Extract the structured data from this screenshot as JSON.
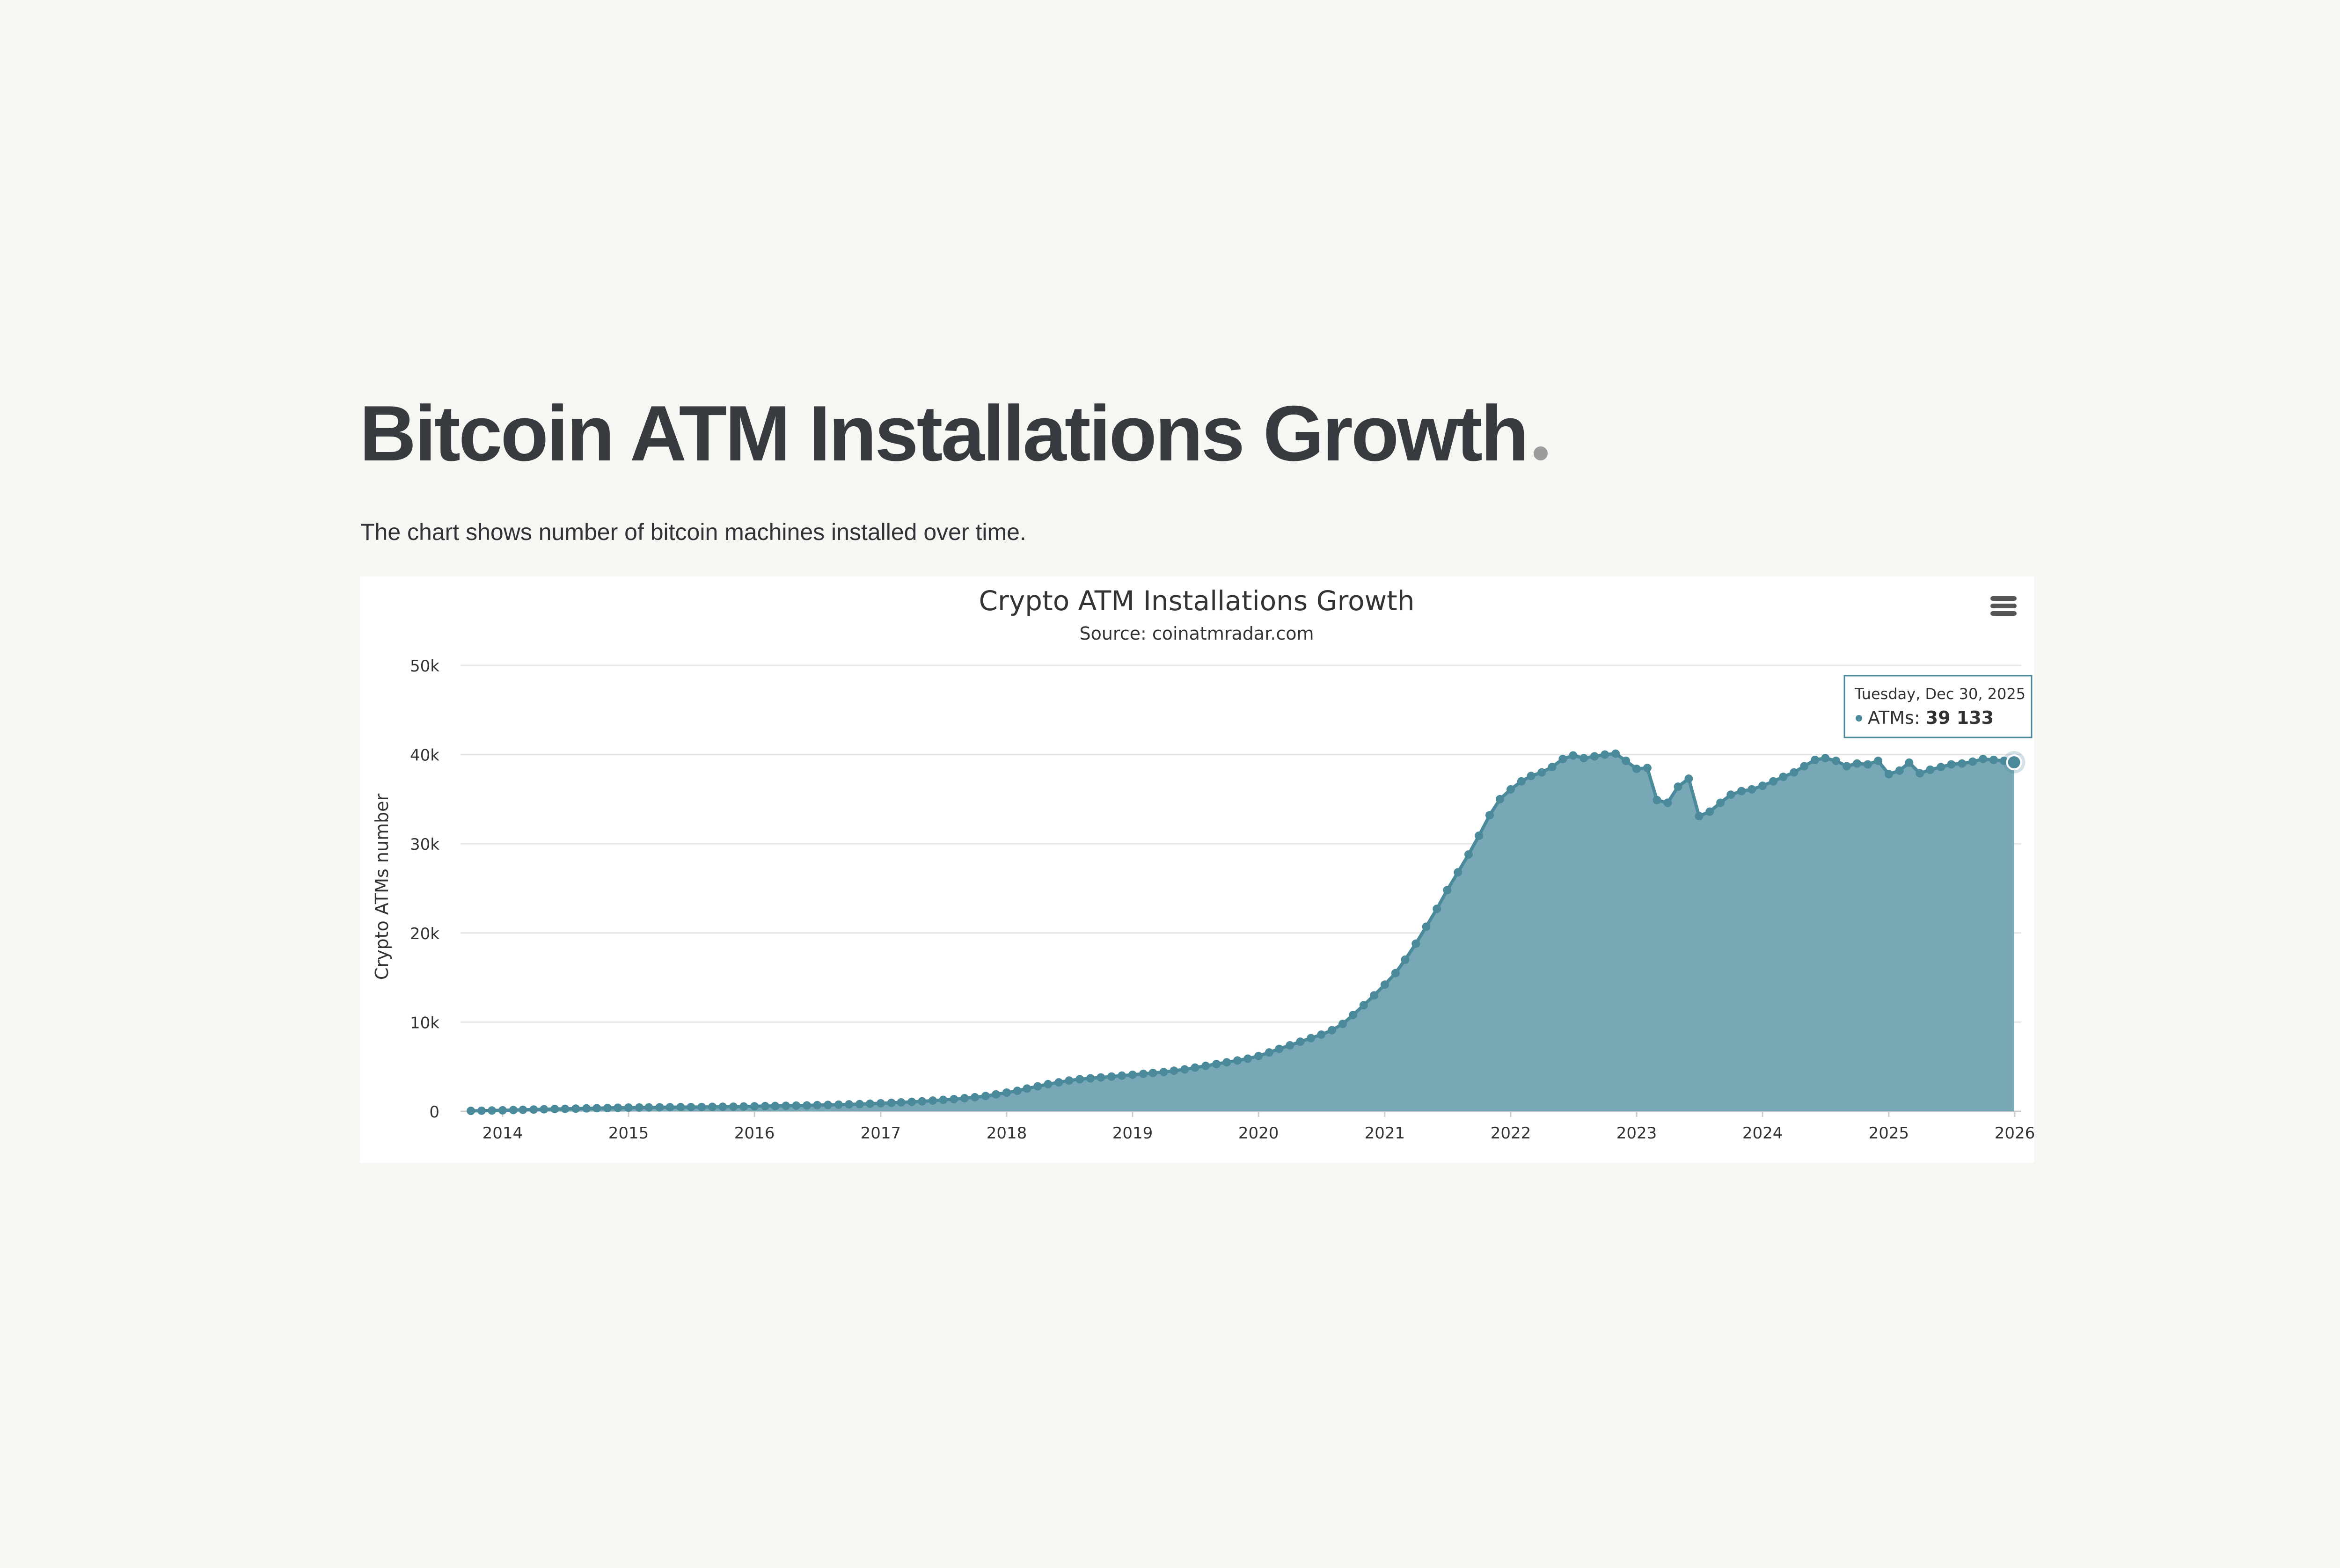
{
  "page": {
    "title": "Bitcoin ATM Installations Growth",
    "description": "The chart shows number of bitcoin machines installed over time."
  },
  "chart_menu": {
    "icon": "hamburger-menu-icon"
  },
  "tooltip": {
    "date": "Tuesday, Dec 30, 2025",
    "series_label": "ATMs:",
    "value": "39 133"
  },
  "colors": {
    "series": "#4b8a9b",
    "area_fill": "#78a8b6",
    "grid": "#e6e6e6",
    "text": "#333333",
    "page_background": "#f6f6f2"
  },
  "chart_data": {
    "type": "area",
    "title": "Crypto ATM Installations Growth",
    "subtitle": "Source: coinatmradar.com",
    "ylabel": "Crypto ATMs number",
    "xlabel": "",
    "ylim": [
      0,
      50000
    ],
    "xlim": [
      "2013-09-01",
      "2026-01-20"
    ],
    "y_ticks": [
      0,
      10000,
      20000,
      30000,
      40000,
      50000
    ],
    "y_tick_labels": [
      "0",
      "10k",
      "20k",
      "30k",
      "40k",
      "50k"
    ],
    "x_ticks": [
      "2014-01-01",
      "2015-01-01",
      "2016-01-01",
      "2017-01-01",
      "2018-01-01",
      "2019-01-01",
      "2020-01-01",
      "2021-01-01",
      "2022-01-01",
      "2023-01-01",
      "2024-01-01",
      "2025-01-01",
      "2026-01-01"
    ],
    "x_tick_labels": [
      "2014",
      "2015",
      "2016",
      "2017",
      "2018",
      "2019",
      "2020",
      "2021",
      "2022",
      "2023",
      "2024",
      "2025",
      "2026"
    ],
    "grid": true,
    "legend": "none",
    "series": [
      {
        "name": "ATMs",
        "points": [
          [
            "2013-10-01",
            50
          ],
          [
            "2013-11-01",
            70
          ],
          [
            "2013-12-01",
            90
          ],
          [
            "2014-01-01",
            110
          ],
          [
            "2014-02-01",
            140
          ],
          [
            "2014-03-01",
            170
          ],
          [
            "2014-04-01",
            200
          ],
          [
            "2014-05-01",
            230
          ],
          [
            "2014-06-01",
            260
          ],
          [
            "2014-07-01",
            280
          ],
          [
            "2014-08-01",
            300
          ],
          [
            "2014-09-01",
            330
          ],
          [
            "2014-10-01",
            350
          ],
          [
            "2014-11-01",
            370
          ],
          [
            "2014-12-01",
            400
          ],
          [
            "2015-01-01",
            420
          ],
          [
            "2015-02-01",
            430
          ],
          [
            "2015-03-01",
            440
          ],
          [
            "2015-04-01",
            450
          ],
          [
            "2015-05-01",
            460
          ],
          [
            "2015-06-01",
            470
          ],
          [
            "2015-07-01",
            480
          ],
          [
            "2015-08-01",
            490
          ],
          [
            "2015-09-01",
            500
          ],
          [
            "2015-10-01",
            510
          ],
          [
            "2015-11-01",
            520
          ],
          [
            "2015-12-01",
            540
          ],
          [
            "2016-01-01",
            560
          ],
          [
            "2016-02-01",
            580
          ],
          [
            "2016-03-01",
            600
          ],
          [
            "2016-04-01",
            620
          ],
          [
            "2016-05-01",
            640
          ],
          [
            "2016-06-01",
            660
          ],
          [
            "2016-07-01",
            690
          ],
          [
            "2016-08-01",
            720
          ],
          [
            "2016-09-01",
            750
          ],
          [
            "2016-10-01",
            780
          ],
          [
            "2016-11-01",
            810
          ],
          [
            "2016-12-01",
            850
          ],
          [
            "2017-01-01",
            900
          ],
          [
            "2017-02-01",
            950
          ],
          [
            "2017-03-01",
            1000
          ],
          [
            "2017-04-01",
            1060
          ],
          [
            "2017-05-01",
            1120
          ],
          [
            "2017-06-01",
            1200
          ],
          [
            "2017-07-01",
            1280
          ],
          [
            "2017-08-01",
            1370
          ],
          [
            "2017-09-01",
            1470
          ],
          [
            "2017-10-01",
            1580
          ],
          [
            "2017-11-01",
            1720
          ],
          [
            "2017-12-01",
            1900
          ],
          [
            "2018-01-01",
            2100
          ],
          [
            "2018-02-01",
            2300
          ],
          [
            "2018-03-01",
            2550
          ],
          [
            "2018-04-01",
            2800
          ],
          [
            "2018-05-01",
            3050
          ],
          [
            "2018-06-01",
            3250
          ],
          [
            "2018-07-01",
            3450
          ],
          [
            "2018-08-01",
            3600
          ],
          [
            "2018-09-01",
            3700
          ],
          [
            "2018-10-01",
            3800
          ],
          [
            "2018-11-01",
            3900
          ],
          [
            "2018-12-01",
            4000
          ],
          [
            "2019-01-01",
            4100
          ],
          [
            "2019-02-01",
            4200
          ],
          [
            "2019-03-01",
            4300
          ],
          [
            "2019-04-01",
            4400
          ],
          [
            "2019-05-01",
            4550
          ],
          [
            "2019-06-01",
            4700
          ],
          [
            "2019-07-01",
            4900
          ],
          [
            "2019-08-01",
            5100
          ],
          [
            "2019-09-01",
            5300
          ],
          [
            "2019-10-01",
            5500
          ],
          [
            "2019-11-01",
            5700
          ],
          [
            "2019-12-01",
            5900
          ],
          [
            "2020-01-01",
            6200
          ],
          [
            "2020-02-01",
            6600
          ],
          [
            "2020-03-01",
            7000
          ],
          [
            "2020-04-01",
            7400
          ],
          [
            "2020-05-01",
            7800
          ],
          [
            "2020-06-01",
            8200
          ],
          [
            "2020-07-01",
            8600
          ],
          [
            "2020-08-01",
            9100
          ],
          [
            "2020-09-01",
            9800
          ],
          [
            "2020-10-01",
            10800
          ],
          [
            "2020-11-01",
            11900
          ],
          [
            "2020-12-01",
            13000
          ],
          [
            "2021-01-01",
            14200
          ],
          [
            "2021-02-01",
            15500
          ],
          [
            "2021-03-01",
            17000
          ],
          [
            "2021-04-01",
            18800
          ],
          [
            "2021-05-01",
            20700
          ],
          [
            "2021-06-01",
            22700
          ],
          [
            "2021-07-01",
            24800
          ],
          [
            "2021-08-01",
            26800
          ],
          [
            "2021-09-01",
            28800
          ],
          [
            "2021-10-01",
            30900
          ],
          [
            "2021-11-01",
            33200
          ],
          [
            "2021-12-01",
            35000
          ],
          [
            "2022-01-01",
            36100
          ],
          [
            "2022-02-01",
            37000
          ],
          [
            "2022-03-01",
            37600
          ],
          [
            "2022-04-01",
            38000
          ],
          [
            "2022-05-01",
            38600
          ],
          [
            "2022-06-01",
            39500
          ],
          [
            "2022-07-01",
            39900
          ],
          [
            "2022-08-01",
            39600
          ],
          [
            "2022-09-01",
            39800
          ],
          [
            "2022-10-01",
            40000
          ],
          [
            "2022-11-01",
            40100
          ],
          [
            "2022-12-01",
            39300
          ],
          [
            "2023-01-01",
            38400
          ],
          [
            "2023-02-01",
            38500
          ],
          [
            "2023-03-01",
            34900
          ],
          [
            "2023-04-01",
            34600
          ],
          [
            "2023-05-01",
            36400
          ],
          [
            "2023-06-01",
            37300
          ],
          [
            "2023-07-01",
            33100
          ],
          [
            "2023-08-01",
            33600
          ],
          [
            "2023-09-01",
            34600
          ],
          [
            "2023-10-01",
            35500
          ],
          [
            "2023-11-01",
            35900
          ],
          [
            "2023-12-01",
            36100
          ],
          [
            "2024-01-01",
            36500
          ],
          [
            "2024-02-01",
            37000
          ],
          [
            "2024-03-01",
            37500
          ],
          [
            "2024-04-01",
            38000
          ],
          [
            "2024-05-01",
            38700
          ],
          [
            "2024-06-01",
            39400
          ],
          [
            "2024-07-01",
            39600
          ],
          [
            "2024-08-01",
            39300
          ],
          [
            "2024-09-01",
            38700
          ],
          [
            "2024-10-01",
            39000
          ],
          [
            "2024-11-01",
            38900
          ],
          [
            "2024-12-01",
            39300
          ],
          [
            "2025-01-01",
            37800
          ],
          [
            "2025-02-01",
            38200
          ],
          [
            "2025-03-01",
            39100
          ],
          [
            "2025-04-01",
            37900
          ],
          [
            "2025-05-01",
            38300
          ],
          [
            "2025-06-01",
            38600
          ],
          [
            "2025-07-01",
            38900
          ],
          [
            "2025-08-01",
            39000
          ],
          [
            "2025-09-01",
            39200
          ],
          [
            "2025-10-01",
            39500
          ],
          [
            "2025-11-01",
            39400
          ],
          [
            "2025-12-01",
            39300
          ],
          [
            "2025-12-30",
            39133
          ]
        ]
      }
    ]
  }
}
